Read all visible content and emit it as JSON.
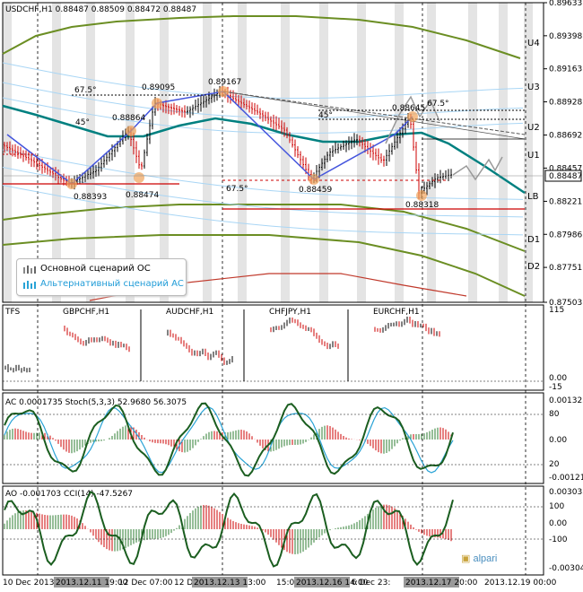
{
  "chart_data": [
    {
      "type": "line",
      "panel": "main",
      "title": "USDCHF,H1  0.88487 0.88509 0.88472 0.88487",
      "symbol": "USDCHF,H1",
      "ohlc": [
        "0.88487",
        "0.88509",
        "0.88472",
        "0.88487"
      ],
      "price_labels": [
        "0.89633",
        "0.89398",
        "0.89163",
        "0.88928",
        "0.88692",
        "0.88457",
        "0.88221",
        "0.87986",
        "0.87751",
        "0.87503"
      ],
      "current_price": "0.88487",
      "ylim": [
        0.87503,
        0.89633
      ],
      "levels": [
        "U4",
        "U3",
        "U2",
        "U1",
        "LB",
        "D1",
        "D2"
      ],
      "extremes": [
        "0.88393",
        "0.88864",
        "0.89095",
        "0.89167",
        "0.88474",
        "0.88459",
        "0.88645",
        "0.88318"
      ],
      "angles": [
        "67.5°",
        "45°",
        "67.5°",
        "45°",
        "67.5°"
      ],
      "angle_positions": [
        [
          "67.5°",
          83,
          103
        ],
        [
          "45°",
          84,
          139
        ],
        [
          "67.5°",
          252,
          213
        ],
        [
          "45°",
          355,
          131
        ],
        [
          "67.5°",
          476,
          118
        ]
      ],
      "legend": [
        "Основной сценарий ОС",
        "Альтернативный сценарий АС"
      ],
      "colors": {
        "bull": "#000000",
        "bear": "#cc0000",
        "channel": "#008080",
        "outer": "#6b8e23",
        "ac_path": "#4455dd",
        "alt": "#999999",
        "grid_stripe": "#e0e0e0"
      },
      "grid": false
    },
    {
      "type": "line",
      "panel": "TFS",
      "title": "TFS",
      "series": [
        {
          "name": "GBPCHF,H1"
        },
        {
          "name": "AUDCHF,H1"
        },
        {
          "name": "CHFJPY,H1"
        },
        {
          "name": "EURCHF,H1"
        }
      ],
      "axis_labels": [
        "115",
        "0.00",
        "-15"
      ],
      "ylim": [
        -15,
        115
      ]
    },
    {
      "type": "bar",
      "panel": "AC_Stoch",
      "title": "AC 0.0001735  Stoch(5,3,3) 52.9680 56.3075",
      "ac_value": "0.0001735",
      "stoch": [
        "52.9680",
        "56.3075"
      ],
      "axis_labels": [
        "0.001325",
        "80",
        "0.00",
        "20",
        "-0.001213"
      ],
      "ylim": [
        -0.001213,
        0.001325
      ]
    },
    {
      "type": "bar",
      "panel": "AO_CCI",
      "title": "AO -0.001703  CCI(14) -47.5267",
      "ao_value": "-0.001703",
      "cci": "-47.5267",
      "axis_labels": [
        "0.003033",
        "100",
        "0.00",
        "-100",
        "-0.003047"
      ],
      "ylim": [
        -0.003047,
        0.003033
      ]
    }
  ],
  "time_axis": [
    "10 Dec 2013",
    "2013.12.11 19:00",
    "12 Dec 07:00",
    "12 De",
    "2013.12.13 13:00",
    "15:00",
    "2013.12.16 14:00",
    "6 Dec 23:",
    "2013.12.17 20:00",
    "2013.12.19 00:00"
  ],
  "watermark": "alpari"
}
